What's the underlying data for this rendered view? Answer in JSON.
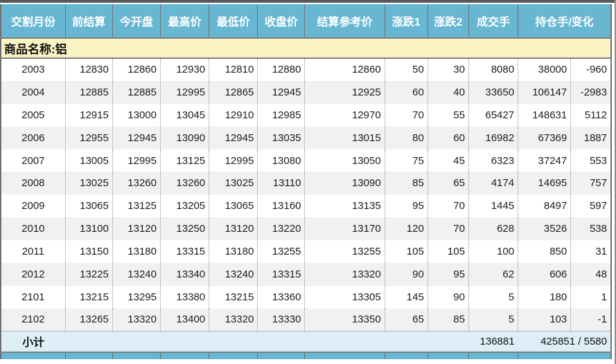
{
  "header": {
    "columns": [
      "交割月份",
      "前结算",
      "今开盘",
      "最高价",
      "最低价",
      "收盘价",
      "结算参考价",
      "涨跌1",
      "涨跌2",
      "成交手",
      "持仓手/变化"
    ]
  },
  "commodity": {
    "label": "商品名称:铝"
  },
  "table": {
    "rows": [
      {
        "cells": [
          "2003",
          "12830",
          "12860",
          "12930",
          "12810",
          "12880",
          "12860",
          "50",
          "30",
          "8080",
          "38000",
          "-960"
        ]
      },
      {
        "cells": [
          "2004",
          "12885",
          "12885",
          "12995",
          "12865",
          "12945",
          "12925",
          "60",
          "40",
          "33650",
          "106147",
          "-2983"
        ]
      },
      {
        "cells": [
          "2005",
          "12915",
          "13000",
          "13045",
          "12910",
          "12985",
          "12970",
          "70",
          "55",
          "65427",
          "148631",
          "5112"
        ]
      },
      {
        "cells": [
          "2006",
          "12955",
          "12945",
          "13090",
          "12945",
          "13035",
          "13015",
          "80",
          "60",
          "16982",
          "67369",
          "1887"
        ]
      },
      {
        "cells": [
          "2007",
          "13005",
          "12995",
          "13125",
          "12995",
          "13080",
          "13050",
          "75",
          "45",
          "6323",
          "37247",
          "553"
        ]
      },
      {
        "cells": [
          "2008",
          "13025",
          "13260",
          "13260",
          "13025",
          "13110",
          "13090",
          "85",
          "65",
          "4174",
          "14695",
          "757"
        ]
      },
      {
        "cells": [
          "2009",
          "13065",
          "13125",
          "13205",
          "13065",
          "13160",
          "13135",
          "95",
          "70",
          "1445",
          "8497",
          "597"
        ]
      },
      {
        "cells": [
          "2010",
          "13100",
          "13120",
          "13250",
          "13120",
          "13220",
          "13170",
          "120",
          "70",
          "628",
          "3526",
          "538"
        ]
      },
      {
        "cells": [
          "2011",
          "13150",
          "13180",
          "13315",
          "13180",
          "13255",
          "13255",
          "105",
          "105",
          "100",
          "850",
          "31"
        ]
      },
      {
        "cells": [
          "2012",
          "13225",
          "13240",
          "13340",
          "13240",
          "13315",
          "13320",
          "90",
          "95",
          "62",
          "606",
          "48"
        ]
      },
      {
        "cells": [
          "2101",
          "13215",
          "13295",
          "13380",
          "13215",
          "13360",
          "13305",
          "145",
          "90",
          "5",
          "180",
          "1"
        ]
      },
      {
        "cells": [
          "2102",
          "13265",
          "13320",
          "13400",
          "13320",
          "13330",
          "13350",
          "65",
          "85",
          "5",
          "103",
          "-1"
        ]
      }
    ]
  },
  "subtotal": {
    "label": "小计",
    "volume_total": "136881",
    "open_interest_total": "425851 / 5580"
  },
  "colors": {
    "topbar": "#595959",
    "header_bg": "#68b7d2",
    "header_separator": "#6f6f6f",
    "heavy_border": "#7f7f7f",
    "commodity_row_bg": "#faf3c3",
    "row_alternate_bg": "#f1f1f1",
    "subtotal_bg": "#ddeef6",
    "dotted_separator": "#909090",
    "text": "#1c1c1c"
  }
}
